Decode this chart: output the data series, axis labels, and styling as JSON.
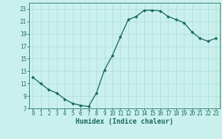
{
  "x": [
    0,
    1,
    2,
    3,
    4,
    5,
    6,
    7,
    8,
    9,
    10,
    11,
    12,
    13,
    14,
    15,
    16,
    17,
    18,
    19,
    20,
    21,
    22,
    23
  ],
  "y": [
    12.0,
    11.0,
    10.0,
    9.5,
    8.5,
    7.8,
    7.5,
    7.3,
    9.5,
    13.2,
    15.5,
    18.5,
    21.3,
    21.8,
    22.8,
    22.8,
    22.7,
    21.8,
    21.3,
    20.8,
    19.3,
    18.3,
    17.8,
    18.3
  ],
  "line_color": "#1a6b5a",
  "marker": "D",
  "marker_size": 2,
  "bg_color": "#caf0ee",
  "grid_color": "#aedddb",
  "xlabel": "Humidex (Indice chaleur)",
  "xlabel_fontsize": 7,
  "ylim": [
    7,
    24
  ],
  "xlim": [
    -0.5,
    23.5
  ],
  "yticks": [
    7,
    9,
    11,
    13,
    15,
    17,
    19,
    21,
    23
  ],
  "xticks": [
    0,
    1,
    2,
    3,
    4,
    5,
    6,
    7,
    8,
    9,
    10,
    11,
    12,
    13,
    14,
    15,
    16,
    17,
    18,
    19,
    20,
    21,
    22,
    23
  ],
  "tick_fontsize": 5.5,
  "line_width": 1.0,
  "axis_color": "#1a6b5a"
}
